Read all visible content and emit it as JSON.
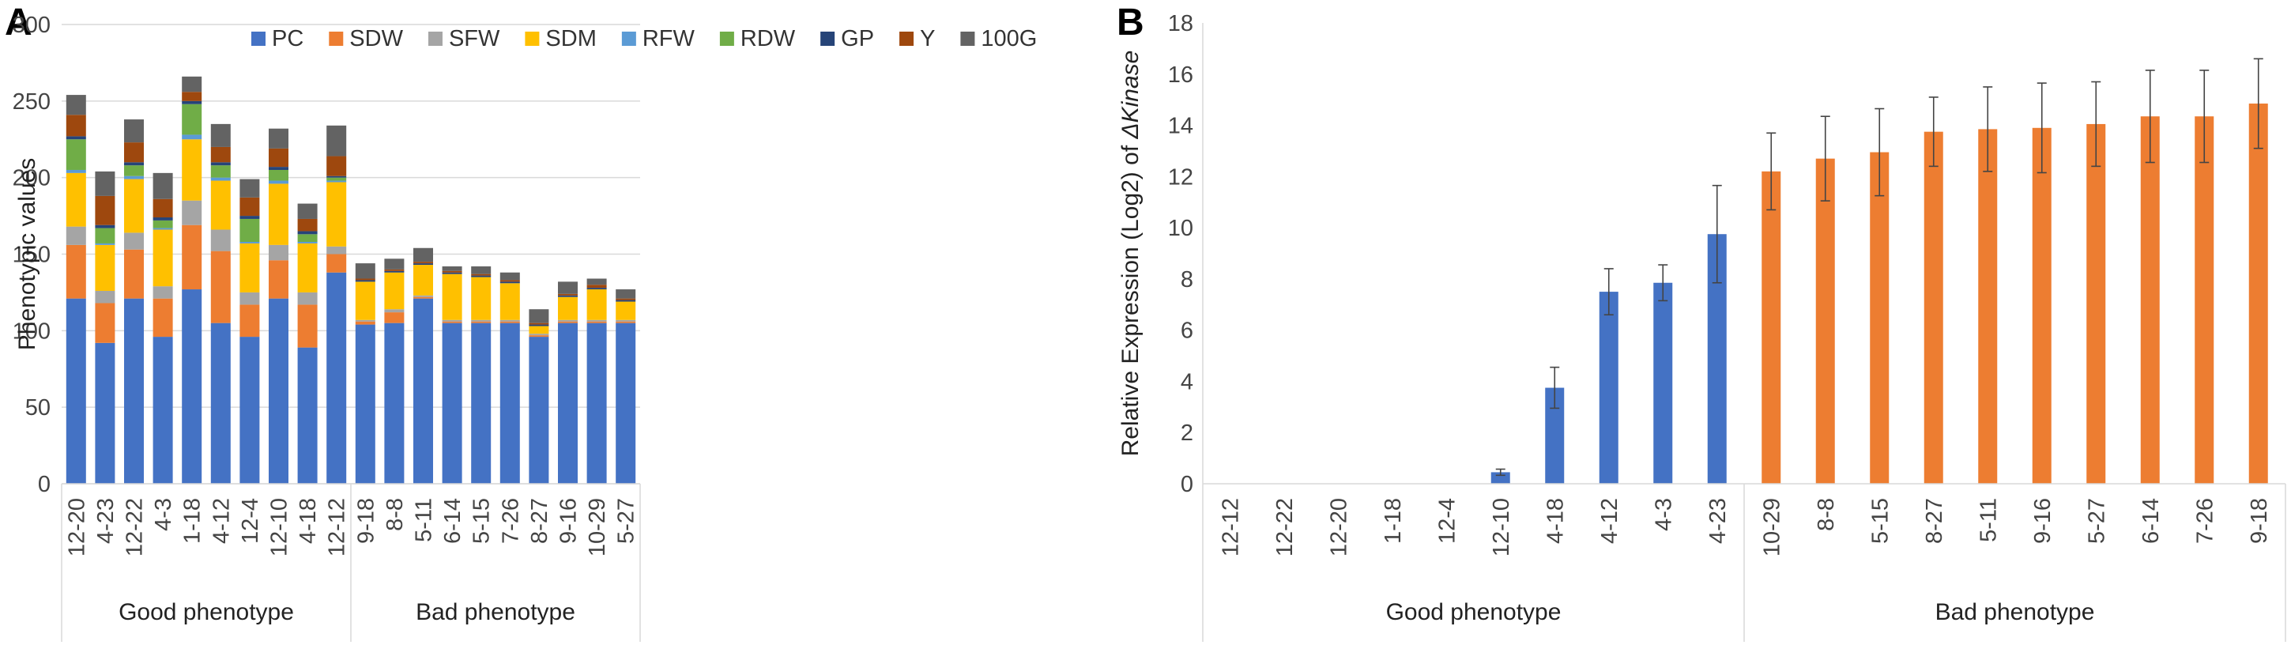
{
  "chart_data": [
    {
      "panel": "A",
      "type": "bar",
      "stacked": true,
      "ylabel": "Phenotypic values",
      "ylim": [
        0,
        300
      ],
      "yticks": [
        0,
        50,
        100,
        150,
        200,
        250,
        300
      ],
      "categories": [
        "12-20",
        "4-23",
        "12-22",
        "4-3",
        "1-18",
        "4-12",
        "12-4",
        "12-10",
        "4-18",
        "12-12",
        "9-18",
        "8-8",
        "5-11",
        "6-14",
        "5-15",
        "7-26",
        "8-27",
        "9-16",
        "10-29",
        "5-27"
      ],
      "groups": [
        {
          "label": "Good phenotype",
          "start": 0,
          "end": 9
        },
        {
          "label": "Bad phenotype",
          "start": 10,
          "end": 19
        }
      ],
      "legend_position": "top",
      "series": [
        {
          "name": "PC",
          "color": "#4472C4",
          "values": [
            121,
            92,
            121,
            96,
            127,
            105,
            96,
            121,
            89,
            138,
            104,
            105,
            121,
            105,
            105,
            105,
            96,
            105,
            105,
            105
          ]
        },
        {
          "name": "SDW",
          "color": "#ED7D31",
          "values": [
            35,
            26,
            32,
            25,
            42,
            47,
            21,
            25,
            28,
            12,
            2,
            7,
            1,
            1,
            1,
            1,
            1,
            1,
            1,
            1
          ]
        },
        {
          "name": "SFW",
          "color": "#A5A5A5",
          "values": [
            12,
            8,
            11,
            8,
            16,
            14,
            8,
            10,
            8,
            5,
            1,
            2,
            1,
            1,
            1,
            1,
            1,
            1,
            1,
            1
          ]
        },
        {
          "name": "SDM",
          "color": "#FFC000",
          "values": [
            35,
            30,
            35,
            37,
            40,
            32,
            32,
            40,
            32,
            42,
            25,
            24,
            20,
            30,
            28,
            24,
            5,
            15,
            20,
            12
          ]
        },
        {
          "name": "RFW",
          "color": "#5B9BD5",
          "values": [
            2,
            1,
            2,
            1,
            3,
            2,
            1,
            2,
            1,
            1,
            0,
            0,
            0,
            0,
            0,
            0,
            0,
            0,
            0,
            0
          ]
        },
        {
          "name": "RDW",
          "color": "#70AD47",
          "values": [
            20,
            10,
            7,
            5,
            20,
            8,
            15,
            7,
            5,
            2,
            0,
            0,
            0,
            0,
            0,
            0,
            0,
            0,
            0,
            0
          ]
        },
        {
          "name": "GP",
          "color": "#264478",
          "values": [
            2,
            2,
            2,
            2,
            2,
            2,
            2,
            2,
            2,
            1,
            1,
            1,
            1,
            1,
            1,
            1,
            1,
            1,
            1,
            1
          ]
        },
        {
          "name": "Y",
          "color": "#9E480E",
          "values": [
            14,
            19,
            13,
            12,
            6,
            10,
            12,
            12,
            8,
            13,
            1,
            1,
            1,
            1,
            1,
            1,
            1,
            1,
            2,
            1
          ]
        },
        {
          "name": "100G",
          "color": "#636363",
          "values": [
            13,
            16,
            15,
            17,
            10,
            15,
            12,
            13,
            10,
            20,
            10,
            7,
            9,
            3,
            5,
            5,
            9,
            8,
            4,
            6
          ]
        }
      ]
    },
    {
      "panel": "B",
      "type": "bar",
      "ylabel_prefix": "Relative Expression (Log2) of ",
      "ylabel_italic": "ΔKinase",
      "ylim": [
        0,
        18
      ],
      "yticks": [
        0,
        2,
        4,
        6,
        8,
        10,
        12,
        14,
        16,
        18
      ],
      "categories": [
        "12-12",
        "12-22",
        "12-20",
        "1-18",
        "12-4",
        "12-10",
        "4-18",
        "4-12",
        "4-3",
        "4-23",
        "10-29",
        "8-8",
        "5-15",
        "8-27",
        "5-11",
        "9-16",
        "5-27",
        "6-14",
        "7-26",
        "9-18"
      ],
      "values": [
        0,
        0,
        0,
        0,
        0,
        0.45,
        3.75,
        7.5,
        7.85,
        9.75,
        12.2,
        12.7,
        12.95,
        13.75,
        13.85,
        13.9,
        14.05,
        14.35,
        14.35,
        14.85
      ],
      "errors": [
        0,
        0,
        0,
        0,
        0,
        0.12,
        0.8,
        0.9,
        0.7,
        1.9,
        1.5,
        1.65,
        1.7,
        1.35,
        1.65,
        1.75,
        1.65,
        1.8,
        1.8,
        1.75
      ],
      "groups": [
        {
          "label": "Good phenotype",
          "start": 0,
          "end": 9,
          "color": "#4472C4"
        },
        {
          "label": "Bad phenotype",
          "start": 10,
          "end": 19,
          "color": "#ED7D31"
        }
      ]
    }
  ]
}
